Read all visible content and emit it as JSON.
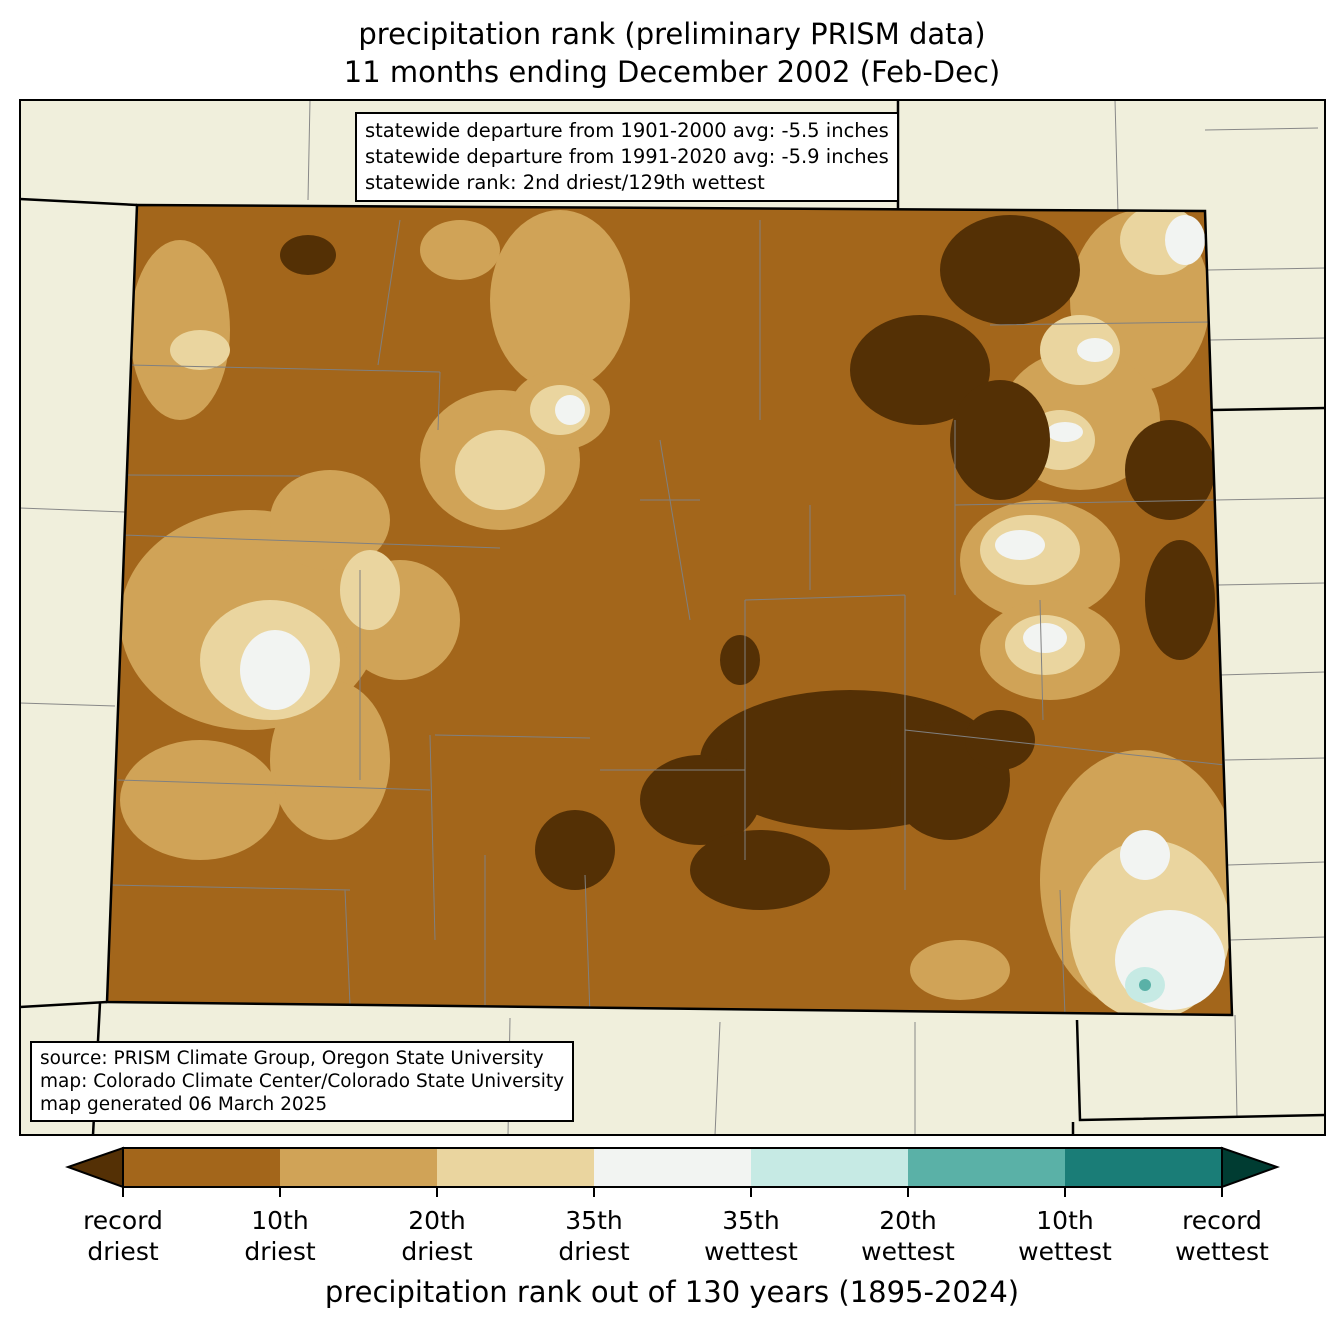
{
  "title": {
    "line1": "precipitation rank (preliminary PRISM data)",
    "line2": "11 months ending December 2002 (Feb-Dec)"
  },
  "stats_box": [
    "statewide departure from 1901-2000 avg: -5.5 inches",
    "statewide departure from 1991-2020 avg: -5.9 inches",
    "statewide rank: 2nd driest/129th wettest"
  ],
  "source_box": [
    "source: PRISM Climate Group, Oregon State University",
    "map: Colorado Climate Center/Colorado State University",
    "map generated 06 March 2025"
  ],
  "colorbar": {
    "extend_low_color": "#543005",
    "extend_high_color": "#003c32",
    "colors": [
      "#a3661b",
      "#d0a357",
      "#ead59f",
      "#f2f4f2",
      "#c6eae4",
      "#5ab1a7",
      "#1a7d77"
    ],
    "tick_labels": [
      [
        "record",
        "driest"
      ],
      [
        "10th",
        "driest"
      ],
      [
        "20th",
        "driest"
      ],
      [
        "35th",
        "driest"
      ],
      [
        "35th",
        "wettest"
      ],
      [
        "20th",
        "wettest"
      ],
      [
        "10th",
        "wettest"
      ],
      [
        "record",
        "wettest"
      ]
    ],
    "axis_label": "precipitation rank out of 130 years (1895-2024)"
  },
  "colors": {
    "background_land": "#f0efdc",
    "county_lines": "#808080"
  }
}
